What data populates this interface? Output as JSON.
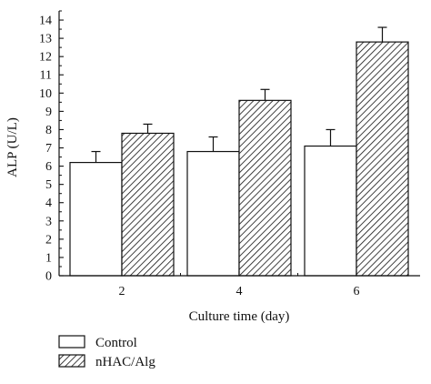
{
  "chart_data": {
    "type": "bar",
    "categories": [
      "2",
      "4",
      "6"
    ],
    "series": [
      {
        "name": "Control",
        "values": [
          6.2,
          6.8,
          7.1
        ],
        "errors": [
          0.6,
          0.8,
          0.9
        ],
        "fill": "white"
      },
      {
        "name": "nHAC/Alg",
        "values": [
          7.8,
          9.6,
          12.8
        ],
        "errors": [
          0.5,
          0.6,
          0.8
        ],
        "fill": "hatched"
      }
    ],
    "yticks": [
      "0",
      "1",
      "2",
      "3",
      "4",
      "5",
      "6",
      "7",
      "8",
      "9",
      "10",
      "11",
      "12",
      "13",
      "14"
    ],
    "title": "",
    "xlabel": "Culture time (day)",
    "ylabel": "ALP (U/L)",
    "ylim": [
      0,
      14.5
    ],
    "grid": false,
    "legend_placement": "bottom-left"
  },
  "colors": {
    "axis": "#111111",
    "bar_stroke": "#111111",
    "control_fill": "#ffffff",
    "hatch_line": "#111111"
  }
}
